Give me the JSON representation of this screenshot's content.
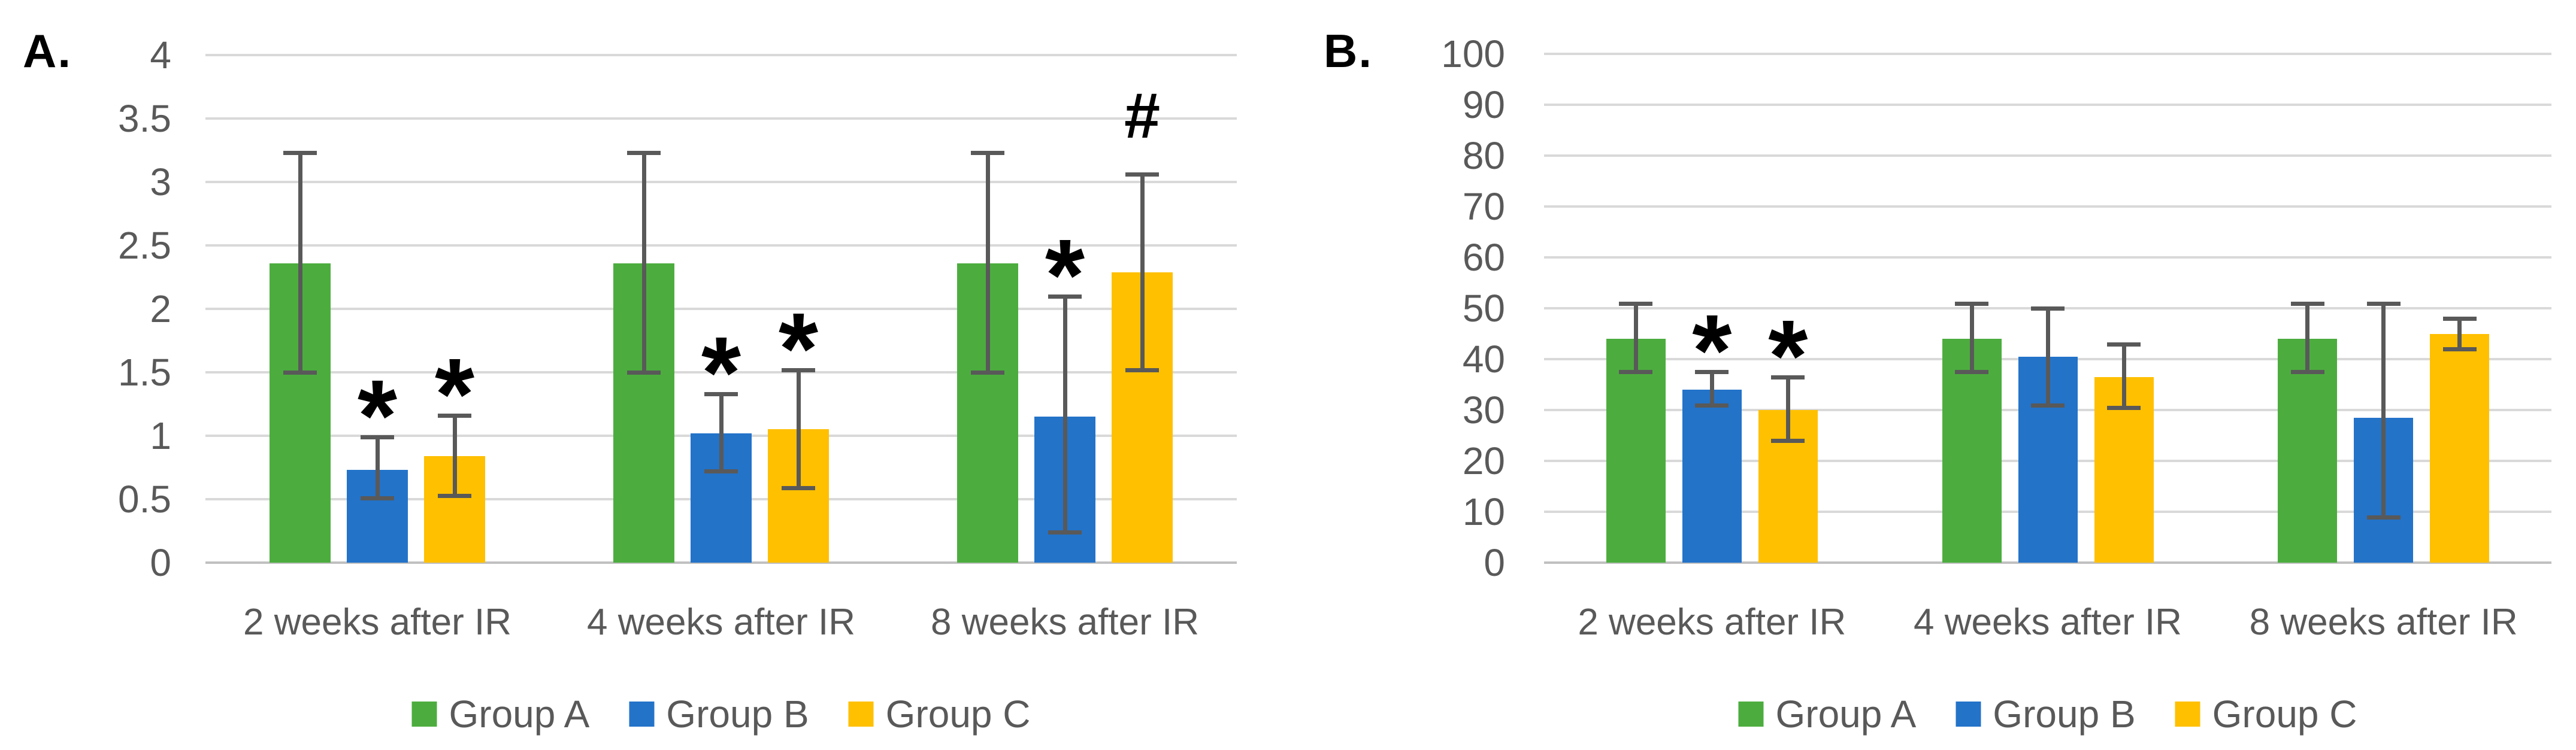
{
  "chart_data": [
    {
      "type": "bar",
      "panel_label": "A.",
      "categories": [
        "2 weeks after IR",
        "4 weeks after IR",
        "8 weeks after IR"
      ],
      "ylim": [
        0,
        4
      ],
      "ytick_step": 0.5,
      "ytick_labels": [
        "4",
        "3.5",
        "3",
        "2.5",
        "2",
        "1.5",
        "1",
        "0.5",
        "0"
      ],
      "grid": true,
      "legend_position": "bottom",
      "series": [
        {
          "name": "Group A",
          "color": "#4cad3e",
          "values": [
            2.36,
            2.36,
            2.36
          ],
          "err_low": [
            1.5,
            1.5,
            1.5
          ],
          "err_high": [
            3.23,
            3.23,
            3.23
          ],
          "marks": [
            "",
            "",
            ""
          ]
        },
        {
          "name": "Group B",
          "color": "#2373c9",
          "values": [
            0.73,
            1.02,
            1.15
          ],
          "err_low": [
            0.51,
            0.72,
            0.24
          ],
          "err_high": [
            0.99,
            1.33,
            2.1
          ],
          "marks": [
            "*",
            "*",
            "*"
          ]
        },
        {
          "name": "Group C",
          "color": "#ffc000",
          "values": [
            0.84,
            1.05,
            2.29
          ],
          "err_low": [
            0.53,
            0.59,
            1.52
          ],
          "err_high": [
            1.16,
            1.52,
            3.06
          ],
          "marks": [
            "*",
            "*",
            "#"
          ]
        }
      ]
    },
    {
      "type": "bar",
      "panel_label": "B.",
      "categories": [
        "2 weeks after IR",
        "4 weeks after IR",
        "8 weeks after IR"
      ],
      "ylim": [
        0,
        100
      ],
      "ytick_step": 10,
      "ytick_labels": [
        "100",
        "90",
        "80",
        "70",
        "60",
        "50",
        "40",
        "30",
        "20",
        "10",
        "0"
      ],
      "grid": true,
      "legend_position": "bottom",
      "series": [
        {
          "name": "Group A",
          "color": "#4cad3e",
          "values": [
            44,
            44,
            44
          ],
          "err_low": [
            37.5,
            37.5,
            37.5
          ],
          "err_high": [
            51,
            51,
            51
          ],
          "marks": [
            "",
            "",
            ""
          ]
        },
        {
          "name": "Group B",
          "color": "#2373c9",
          "values": [
            34,
            40.5,
            28.5
          ],
          "err_low": [
            31,
            31,
            9
          ],
          "err_high": [
            37.5,
            50,
            51
          ],
          "marks": [
            "*",
            "",
            ""
          ]
        },
        {
          "name": "Group C",
          "color": "#ffc000",
          "values": [
            30,
            36.5,
            45
          ],
          "err_low": [
            24,
            30.5,
            42
          ],
          "err_high": [
            36.5,
            43,
            48
          ],
          "marks": [
            "*",
            "",
            ""
          ]
        }
      ]
    }
  ],
  "colors": {
    "group_a": "#4cad3e",
    "group_b": "#2373c9",
    "group_c": "#ffc000",
    "gridline": "#d9d9d9",
    "axis_line": "#c0c0c0",
    "error_bar": "#595959",
    "label_text": "#595959",
    "annotation": "#000000",
    "background": "#ffffff"
  }
}
